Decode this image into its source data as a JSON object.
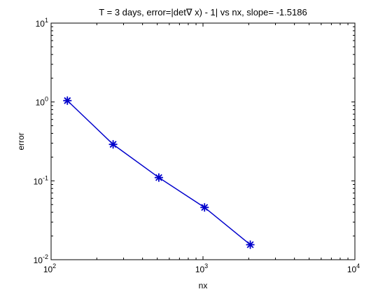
{
  "chart_data": {
    "type": "line",
    "title": "T = 3 days, error=|det∇ x) - 1| vs nx,  slope= -1.5186",
    "xlabel": "nx",
    "ylabel": "error",
    "xscale": "log",
    "yscale": "log",
    "xlim": [
      100,
      10000
    ],
    "ylim": [
      0.01,
      10
    ],
    "xticks": [
      {
        "base": "10",
        "exp": "2"
      },
      {
        "base": "10",
        "exp": "3"
      },
      {
        "base": "10",
        "exp": "4"
      }
    ],
    "yticks": [
      {
        "base": "10",
        "exp": "-2"
      },
      {
        "base": "10",
        "exp": "-1"
      },
      {
        "base": "10",
        "exp": "0"
      },
      {
        "base": "10",
        "exp": "1"
      }
    ],
    "grid": false,
    "series": [
      {
        "x": [
          128,
          256,
          512,
          1024,
          2048
        ],
        "y": [
          1.04,
          0.29,
          0.11,
          0.046,
          0.0155
        ],
        "color": "#0000cc",
        "marker": "asterisk"
      }
    ]
  }
}
